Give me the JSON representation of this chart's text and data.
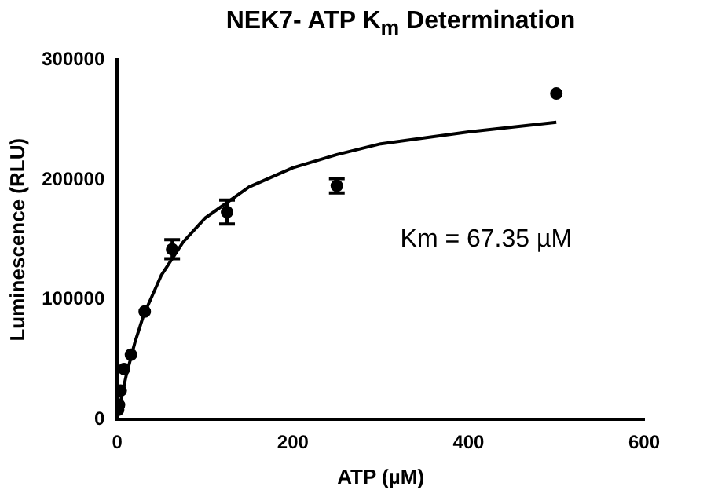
{
  "chart_data": {
    "type": "scatter",
    "title": "NEK7- ATP K$_{m}$ Determination",
    "xlabel": "ATP (µM)",
    "ylabel": "Luminescence (RLU)",
    "xlim": [
      0,
      600
    ],
    "xticks": [
      0,
      200,
      400,
      600
    ],
    "ylim": [
      0,
      300000
    ],
    "yticks": [
      0,
      100000,
      200000,
      300000
    ],
    "grid": false,
    "legend": false,
    "marker": "circle",
    "annotations": [
      "Km = 67.35 µM"
    ],
    "series": [
      {
        "color": "#000000",
        "x": [
          0.98,
          1.95,
          3.9,
          7.8,
          15.6,
          31.25,
          62.5,
          125,
          250,
          500
        ],
        "values": [
          8000,
          12000,
          24000,
          42000,
          54000,
          90000,
          142000,
          173000,
          195000,
          272000
        ],
        "errors": [
          null,
          null,
          null,
          null,
          null,
          null,
          8000,
          10000,
          6000,
          null
        ]
      },
      {
        "type": "line",
        "color": "#000000",
        "marker": "none",
        "x": [
          0,
          5,
          10,
          20,
          30,
          50,
          75,
          100,
          150,
          200,
          250,
          300,
          400,
          500
        ],
        "values": [
          0,
          19000,
          36000,
          64000,
          87000,
          120000,
          148000,
          168000,
          194000,
          210000,
          221000,
          230000,
          240000,
          248000
        ]
      }
    ]
  }
}
